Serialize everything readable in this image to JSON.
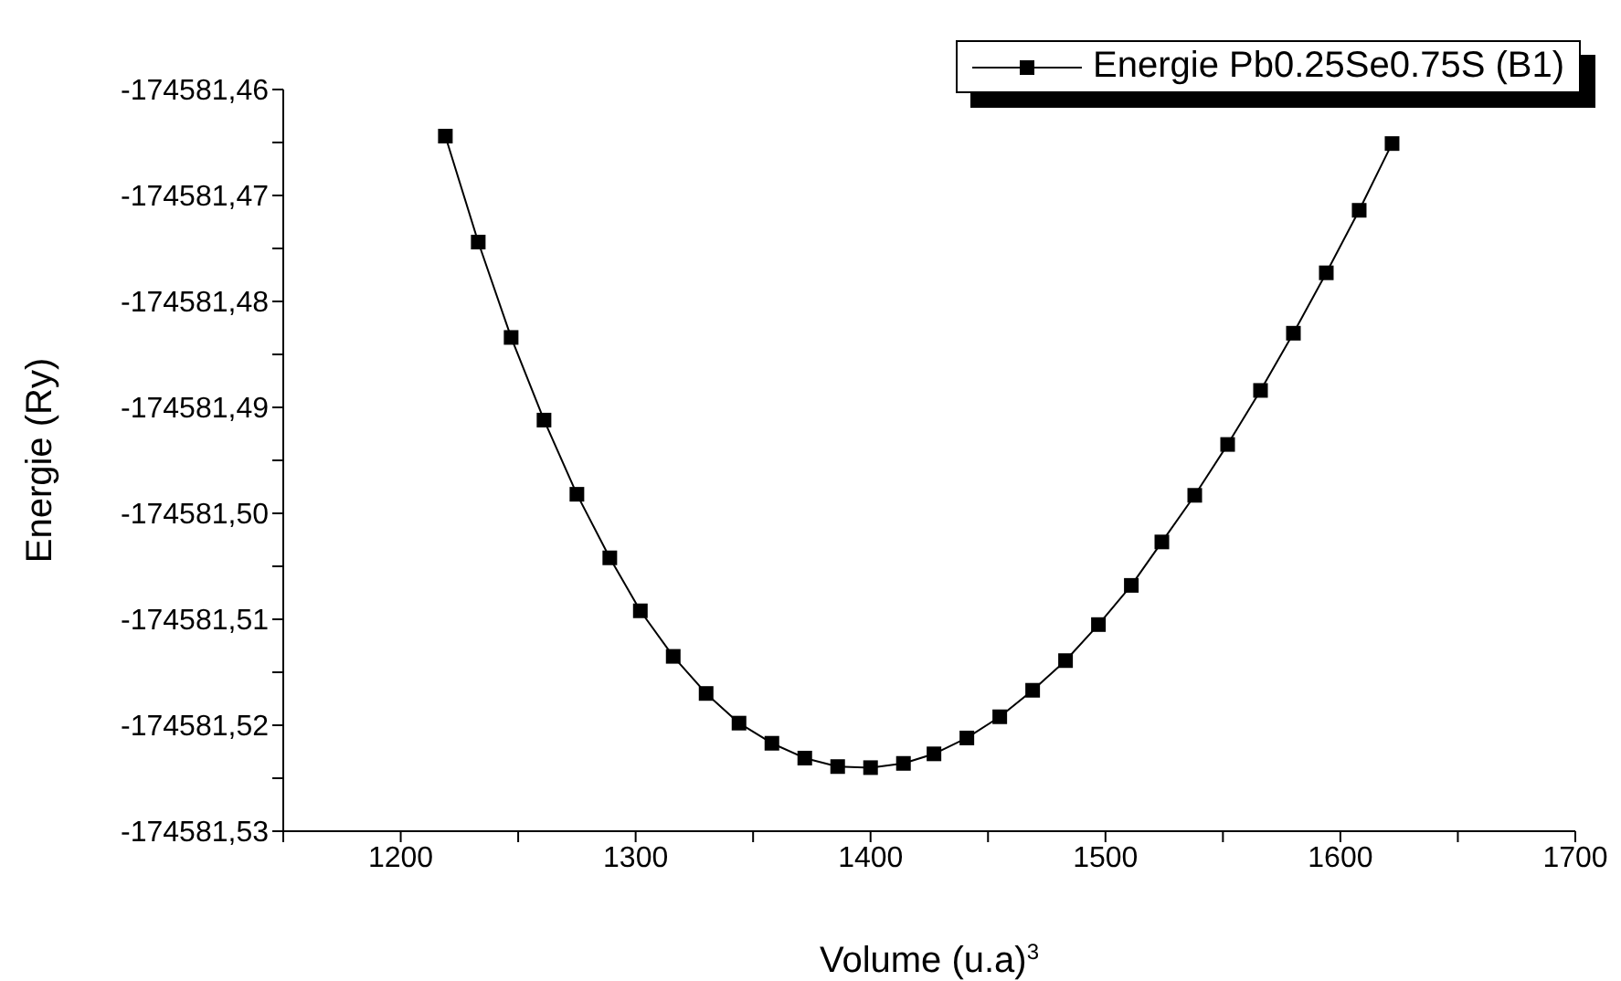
{
  "chart_data": {
    "type": "line",
    "xlabel": "Volume (u.a)$^{3}$",
    "ylabel": "Energie (Ry)",
    "x": [
      1219,
      1233,
      1247,
      1261,
      1275,
      1289,
      1302,
      1316,
      1330,
      1344,
      1358,
      1372,
      1386,
      1400,
      1414,
      1427,
      1441,
      1455,
      1469,
      1483,
      1497,
      1511,
      1524,
      1538,
      1552,
      1566,
      1580,
      1594,
      1608,
      1622
    ],
    "series": [
      {
        "name": "Energie Pb0.25Se0.75S (B1)",
        "color": "#000000",
        "values": [
          -174581.4644,
          -174581.4744,
          -174581.4834,
          -174581.4912,
          -174581.4982,
          -174581.5042,
          -174581.5092,
          -174581.5135,
          -174581.517,
          -174581.5198,
          -174581.5217,
          -174581.5231,
          -174581.5239,
          -174581.524,
          -174581.5236,
          -174581.5227,
          -174581.5212,
          -174581.5192,
          -174581.5167,
          -174581.5139,
          -174581.5105,
          -174581.5068,
          -174581.5027,
          -174581.4983,
          -174581.4935,
          -174581.4884,
          -174581.483,
          -174581.4773,
          -174581.4714,
          -174581.4651
        ]
      }
    ],
    "xlim": [
      1150,
      1700
    ],
    "xticks": [
      {
        "value": 1150,
        "label": null
      },
      1200,
      {
        "value": 1250,
        "label": null
      },
      1300,
      {
        "value": 1350,
        "label": null
      },
      1400,
      {
        "value": 1450,
        "label": null
      },
      1500,
      {
        "value": 1550,
        "label": null
      },
      1600,
      {
        "value": 1650,
        "label": null
      },
      1700
    ],
    "ylim": [
      -174581.53,
      -174581.46
    ],
    "yticks": [
      {
        "value": -174581.53,
        "label": "-174581,53"
      },
      {
        "value": -174581.525,
        "label": null
      },
      {
        "value": -174581.52,
        "label": "-174581,52"
      },
      {
        "value": -174581.515,
        "label": null
      },
      {
        "value": -174581.51,
        "label": "-174581,51"
      },
      {
        "value": -174581.505,
        "label": null
      },
      {
        "value": -174581.5,
        "label": "-174581,50"
      },
      {
        "value": -174581.495,
        "label": null
      },
      {
        "value": -174581.49,
        "label": "-174581,49"
      },
      {
        "value": -174581.485,
        "label": null
      },
      {
        "value": -174581.48,
        "label": "-174581,48"
      },
      {
        "value": -174581.475,
        "label": null
      },
      {
        "value": -174581.47,
        "label": "-174581,47"
      },
      {
        "value": -174581.465,
        "label": null
      },
      {
        "value": -174581.46,
        "label": "-174581,46"
      }
    ],
    "grid": false,
    "legend": "top right",
    "marker": "square",
    "line_style": "solid"
  }
}
